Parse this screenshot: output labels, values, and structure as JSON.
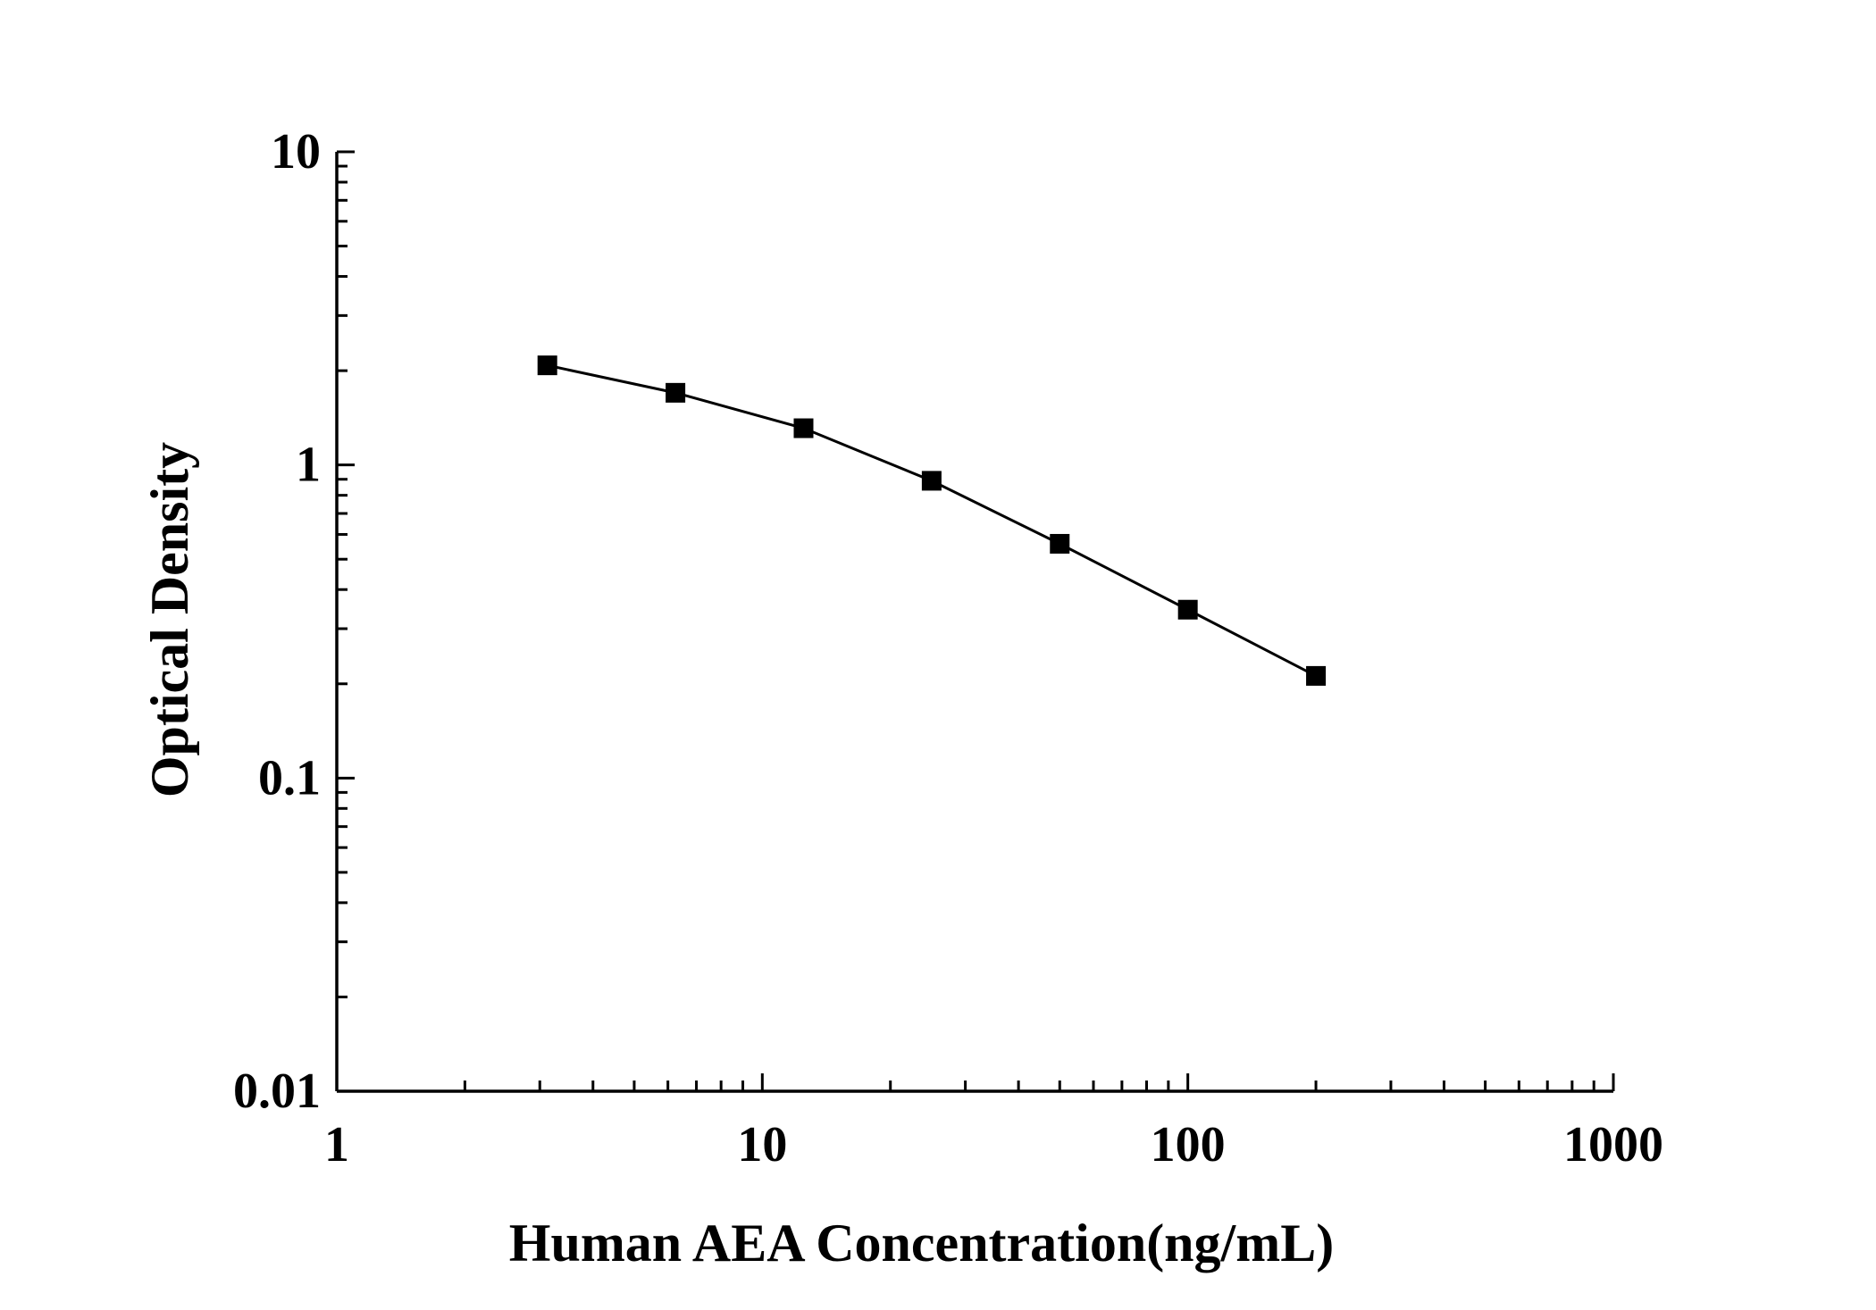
{
  "chart_data": {
    "type": "line",
    "title": "",
    "xlabel": "Human AEA Concentration(ng/mL)",
    "ylabel": "Optical Density",
    "xscale": "log",
    "yscale": "log",
    "xlim": [
      1,
      1000
    ],
    "ylim": [
      0.01,
      10
    ],
    "xticks": [
      1,
      10,
      100,
      1000
    ],
    "xtick_labels": [
      "1",
      "10",
      "100",
      "1000"
    ],
    "yticks": [
      0.01,
      0.1,
      1,
      10
    ],
    "ytick_labels": [
      "0.01",
      "0.1",
      "1",
      "10"
    ],
    "grid": false,
    "legend": "none",
    "marker": "square",
    "series": [
      {
        "x": [
          3.125,
          6.25,
          12.5,
          25,
          50,
          100,
          200
        ],
        "y": [
          2.08,
          1.7,
          1.31,
          0.89,
          0.56,
          0.345,
          0.212
        ]
      }
    ]
  }
}
